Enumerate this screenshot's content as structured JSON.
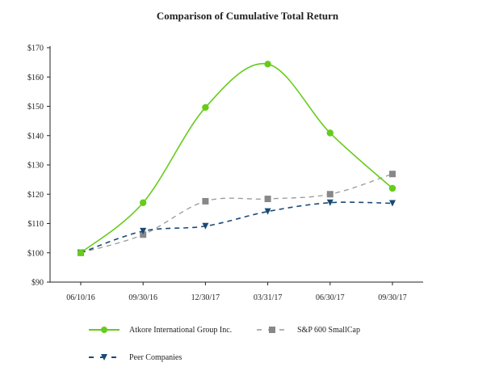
{
  "chart_data": {
    "type": "line",
    "title": "Comparison of Cumulative Total Return",
    "xlabel": "",
    "ylabel": "",
    "categories": [
      "06/10/16",
      "09/30/16",
      "12/30/17",
      "03/31/17",
      "06/30/17",
      "09/30/17"
    ],
    "ylim": [
      90,
      170
    ],
    "yticks": [
      "$90",
      "$100",
      "$110",
      "$120",
      "$130",
      "$140",
      "$150",
      "$160",
      "$170"
    ],
    "ytick_values": [
      90,
      100,
      110,
      120,
      130,
      140,
      150,
      160,
      170
    ],
    "grid": false,
    "legend_position": "bottom-left",
    "series": [
      {
        "name": "Atkore International Group Inc.",
        "values": [
          100,
          117.1,
          149.6,
          164.4,
          140.9,
          122.0
        ],
        "color": "#66cc1a",
        "marker": "circle",
        "dash": "solid"
      },
      {
        "name": "S&P 600 SmallCap",
        "values": [
          100,
          106.2,
          117.6,
          118.4,
          120.0,
          126.9
        ],
        "color": "#999999",
        "marker": "square",
        "dash": "dashed"
      },
      {
        "name": "Peer Companies",
        "values": [
          100,
          107.4,
          109.1,
          114.1,
          117.1,
          116.9
        ],
        "color": "#1a4a75",
        "marker": "triangle-down",
        "dash": "dashed"
      }
    ]
  }
}
